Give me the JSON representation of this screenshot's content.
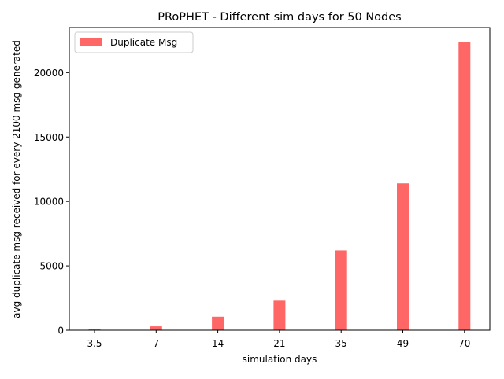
{
  "chart_data": {
    "type": "bar",
    "title": "PRoPHET - Different sim days for 50 Nodes",
    "xlabel": "simulation days",
    "ylabel": "avg duplicate msg received for every 2100 msg generated",
    "categories": [
      "3.5",
      "7",
      "14",
      "21",
      "35",
      "49",
      "70"
    ],
    "series": [
      {
        "name": "Duplicate Msg",
        "values": [
          60,
          300,
          1050,
          2300,
          6200,
          11400,
          22400
        ],
        "color": "#ff6666"
      }
    ],
    "ylim": [
      0,
      23500
    ],
    "yticks": [
      0,
      5000,
      10000,
      15000,
      20000
    ],
    "ytick_labels": [
      "0",
      "5000",
      "10000",
      "15000",
      "20000"
    ],
    "grid": false,
    "legend_position": "upper-left"
  }
}
